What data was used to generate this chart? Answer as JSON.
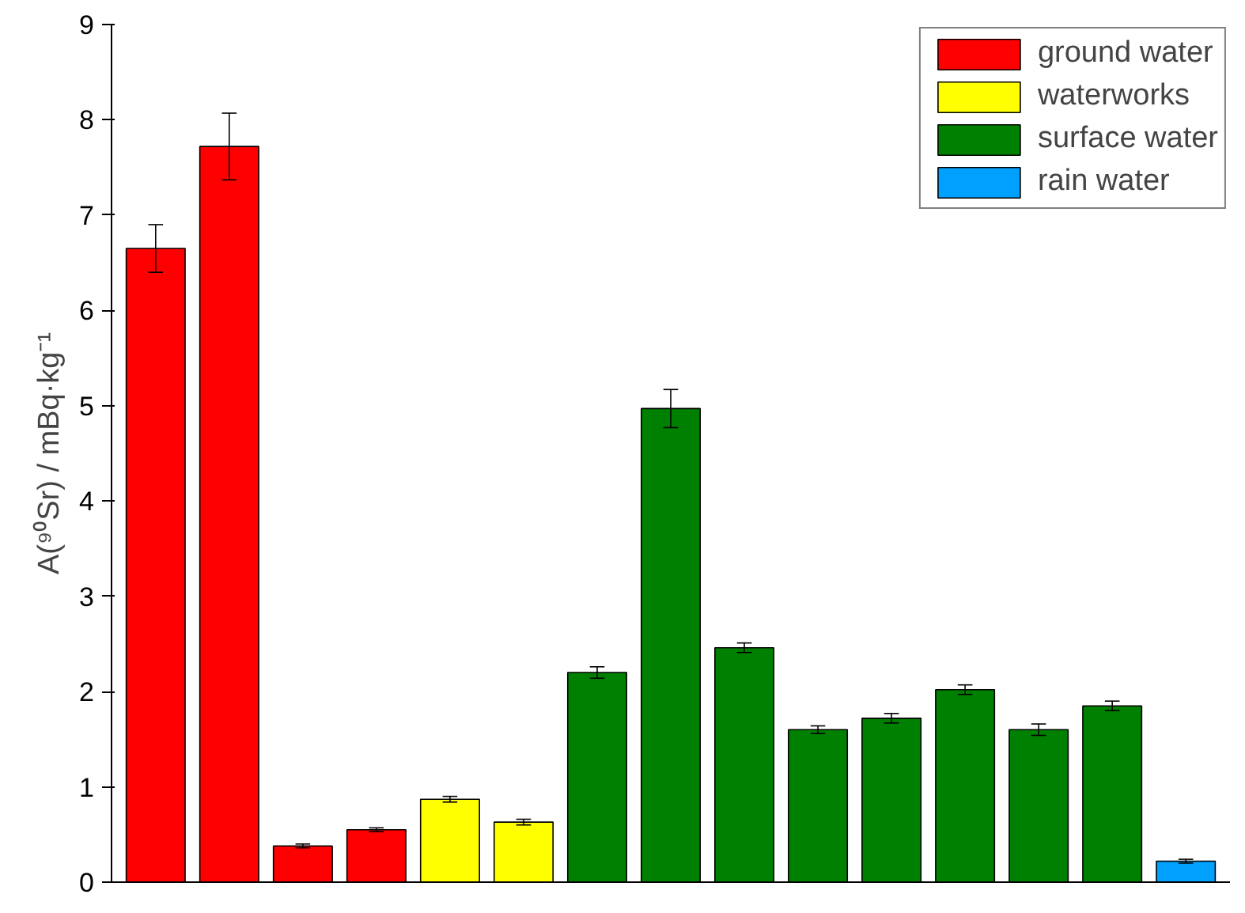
{
  "chart_data": {
    "type": "bar",
    "ylabel": "A(⁹⁰Sr) / mBq·kg⁻¹",
    "categories": [
      null,
      null,
      null,
      null,
      null,
      null,
      null,
      null,
      null,
      null,
      null,
      null,
      null,
      null,
      null
    ],
    "series": [
      {
        "name": "ground water",
        "color": "#ff0000",
        "values": [
          6.65,
          7.72,
          0.38,
          0.55,
          null,
          null,
          null,
          null,
          null,
          null,
          null,
          null,
          null,
          null,
          null
        ],
        "errors": [
          0.25,
          0.35,
          0.02,
          0.02,
          null,
          null,
          null,
          null,
          null,
          null,
          null,
          null,
          null,
          null,
          null
        ]
      },
      {
        "name": "waterworks",
        "color": "#ffff00",
        "values": [
          null,
          null,
          null,
          null,
          0.87,
          0.63,
          null,
          null,
          null,
          null,
          null,
          null,
          null,
          null,
          null
        ],
        "errors": [
          null,
          null,
          null,
          null,
          0.03,
          0.03,
          null,
          null,
          null,
          null,
          null,
          null,
          null,
          null,
          null
        ]
      },
      {
        "name": "surface water",
        "color": "#008000",
        "values": [
          null,
          null,
          null,
          null,
          null,
          null,
          2.2,
          4.97,
          2.46,
          1.6,
          1.72,
          2.02,
          1.6,
          1.85,
          null
        ],
        "errors": [
          null,
          null,
          null,
          null,
          null,
          null,
          0.06,
          0.2,
          0.05,
          0.04,
          0.05,
          0.05,
          0.06,
          0.05,
          null
        ]
      },
      {
        "name": "rain water",
        "color": "#00a0ff",
        "values": [
          null,
          null,
          null,
          null,
          null,
          null,
          null,
          null,
          null,
          null,
          null,
          null,
          null,
          null,
          0.22
        ],
        "errors": [
          null,
          null,
          null,
          null,
          null,
          null,
          null,
          null,
          null,
          null,
          null,
          null,
          null,
          null,
          0.02
        ]
      }
    ],
    "ylim": [
      0,
      9
    ],
    "yticks": [
      0,
      1,
      2,
      3,
      4,
      5,
      6,
      7,
      8,
      9
    ],
    "grid": false,
    "legend": "top right",
    "tick_labels": "y"
  }
}
